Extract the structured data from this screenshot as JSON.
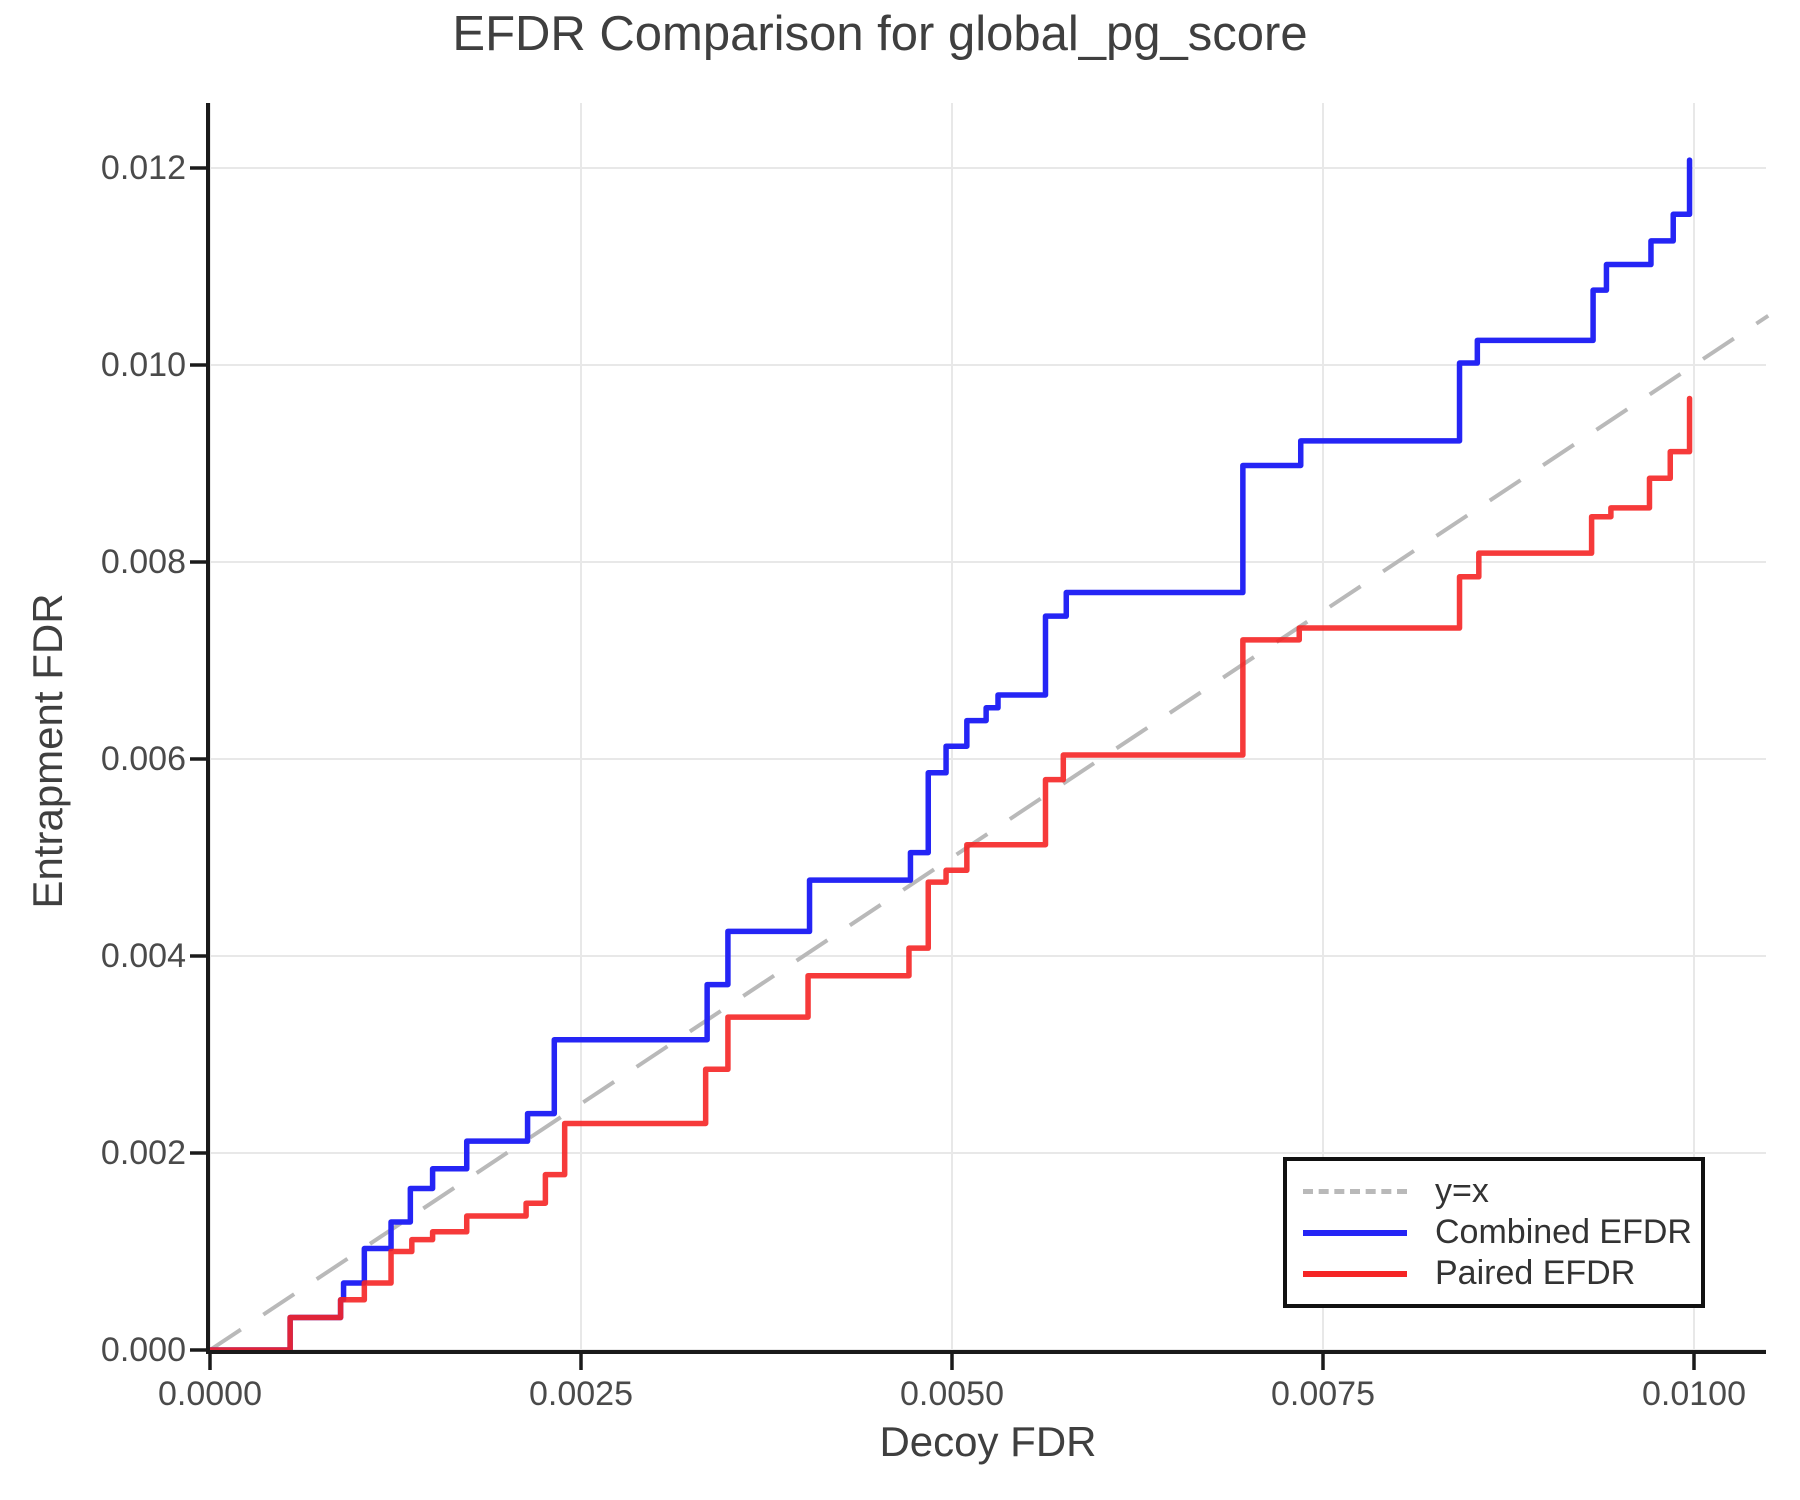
{
  "title": "EFDR Comparison for global_pg_score",
  "colors": {
    "combined_line": "#2525f5",
    "paired_line": "#f52525",
    "identity_line": "#b9b9b9",
    "grid": "#e8e8e8",
    "spine": "#1a1a1a",
    "text": "#3f3f3f"
  },
  "legend": {
    "items": [
      {
        "label": "y=x",
        "swatch": "dashed-gray-line"
      },
      {
        "label": "Combined EFDR",
        "swatch": "solid-blue-line"
      },
      {
        "label": "Paired EFDR",
        "swatch": "solid-red-line"
      }
    ]
  },
  "chart_data": {
    "type": "line",
    "subtype": "step-post",
    "title": "EFDR Comparison for global_pg_score",
    "xlabel": "Decoy FDR",
    "ylabel": "Entrapment FDR",
    "xlim": [
      0,
      0.0105
    ],
    "ylim": [
      0,
      0.0127
    ],
    "grid": true,
    "legend_position": "lower right",
    "x_ticks": {
      "values": [
        0.0,
        0.0025,
        0.005,
        0.0075,
        0.01
      ],
      "labels": [
        "0.0000",
        "0.0025",
        "0.0050",
        "0.0075",
        "0.0100"
      ]
    },
    "y_ticks": {
      "values": [
        0.0,
        0.002,
        0.004,
        0.006,
        0.008,
        0.01,
        0.012
      ],
      "labels": [
        "0.000",
        "0.002",
        "0.004",
        "0.006",
        "0.008",
        "0.010",
        "0.012"
      ]
    },
    "series": [
      {
        "name": "y=x",
        "style": "dashed",
        "color": "#b9b9b9",
        "width": 4,
        "points": [
          [
            0,
            0
          ],
          [
            0.0105,
            0.0105
          ]
        ]
      },
      {
        "name": "Combined EFDR",
        "style": "step-post",
        "color": "#2525f5",
        "width": 5.5,
        "start": [
          0,
          0
        ],
        "steps": [
          [
            0.00054,
            0.00033
          ],
          [
            0.00088,
            0.00051
          ],
          [
            0.0009,
            0.00068
          ],
          [
            0.00104,
            0.00103
          ],
          [
            0.00122,
            0.0013
          ],
          [
            0.00135,
            0.00164
          ],
          [
            0.0015,
            0.00184
          ],
          [
            0.00173,
            0.00212
          ],
          [
            0.00214,
            0.0024
          ],
          [
            0.00232,
            0.00315
          ],
          [
            0.00335,
            0.00371
          ],
          [
            0.00349,
            0.00425
          ],
          [
            0.00404,
            0.00477
          ],
          [
            0.00472,
            0.00505
          ],
          [
            0.00484,
            0.00586
          ],
          [
            0.00496,
            0.00613
          ],
          [
            0.0051,
            0.00639
          ],
          [
            0.00523,
            0.00652
          ],
          [
            0.00531,
            0.00665
          ],
          [
            0.00563,
            0.00745
          ],
          [
            0.00577,
            0.00769
          ],
          [
            0.00696,
            0.00898
          ],
          [
            0.00735,
            0.00923
          ],
          [
            0.00842,
            0.01002
          ],
          [
            0.00854,
            0.01025
          ],
          [
            0.00932,
            0.01076
          ],
          [
            0.00941,
            0.01102
          ],
          [
            0.00971,
            0.01126
          ],
          [
            0.00986,
            0.01153
          ],
          [
            0.00997,
            0.01208
          ]
        ]
      },
      {
        "name": "Paired EFDR",
        "style": "step-post",
        "color": "#f52525",
        "width": 5.5,
        "opacity": 0.9,
        "start": [
          0,
          0
        ],
        "steps": [
          [
            0.00054,
            0.00033
          ],
          [
            0.00088,
            0.00051
          ],
          [
            0.00104,
            0.00068
          ],
          [
            0.00122,
            0.001
          ],
          [
            0.00136,
            0.00112
          ],
          [
            0.0015,
            0.0012
          ],
          [
            0.00173,
            0.00136
          ],
          [
            0.00213,
            0.00149
          ],
          [
            0.00226,
            0.00178
          ],
          [
            0.00239,
            0.0023
          ],
          [
            0.00334,
            0.00285
          ],
          [
            0.00349,
            0.00338
          ],
          [
            0.00403,
            0.0038
          ],
          [
            0.00471,
            0.00408
          ],
          [
            0.00484,
            0.00475
          ],
          [
            0.00496,
            0.00487
          ],
          [
            0.0051,
            0.00513
          ],
          [
            0.00563,
            0.00579
          ],
          [
            0.00575,
            0.00604
          ],
          [
            0.00696,
            0.00721
          ],
          [
            0.00734,
            0.00733
          ],
          [
            0.00842,
            0.00785
          ],
          [
            0.00855,
            0.00809
          ],
          [
            0.00931,
            0.00846
          ],
          [
            0.00944,
            0.00855
          ],
          [
            0.0097,
            0.00885
          ],
          [
            0.00984,
            0.00912
          ],
          [
            0.00997,
            0.00966
          ]
        ]
      }
    ]
  }
}
